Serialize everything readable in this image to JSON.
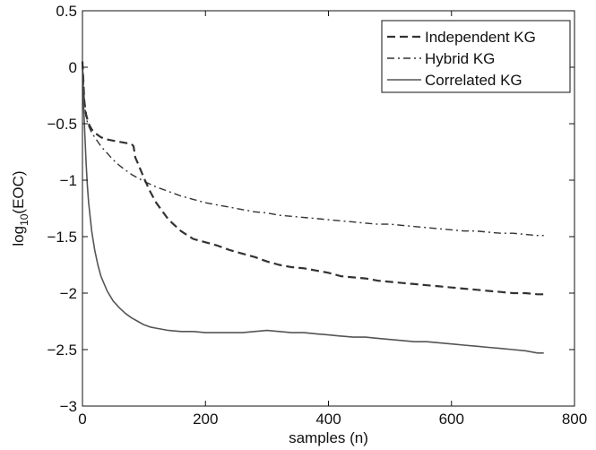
{
  "chart_data": {
    "type": "line",
    "title": "",
    "xlabel": "samples (n)",
    "ylabel_base": "log",
    "ylabel_sub": "10",
    "ylabel_rest": "(EOC)",
    "xlim": [
      0,
      800
    ],
    "ylim": [
      -3,
      0.5
    ],
    "xticks": [
      0,
      200,
      400,
      600,
      800
    ],
    "yticks": [
      0.5,
      0,
      -0.5,
      -1,
      -1.5,
      -2,
      -2.5,
      -3
    ],
    "xtick_labels": [
      "0",
      "200",
      "400",
      "600",
      "800"
    ],
    "ytick_labels": [
      "0.5",
      "0",
      "−0.5",
      "−1",
      "−1.5",
      "−2",
      "−2.5",
      "−3"
    ],
    "grid": false,
    "legend_position": "top-right",
    "series": [
      {
        "name": "Independent KG",
        "style": "dashed",
        "color": "#333333",
        "x": [
          0,
          3,
          6,
          10,
          15,
          20,
          30,
          40,
          50,
          60,
          70,
          80,
          83,
          86,
          90,
          100,
          110,
          120,
          140,
          160,
          180,
          200,
          220,
          240,
          260,
          280,
          300,
          320,
          340,
          360,
          380,
          400,
          420,
          440,
          460,
          480,
          500,
          520,
          540,
          560,
          580,
          600,
          620,
          640,
          660,
          680,
          700,
          720,
          740,
          750
        ],
        "y": [
          0.05,
          -0.3,
          -0.42,
          -0.5,
          -0.55,
          -0.58,
          -0.62,
          -0.64,
          -0.65,
          -0.66,
          -0.67,
          -0.68,
          -0.7,
          -0.8,
          -0.85,
          -0.98,
          -1.1,
          -1.2,
          -1.35,
          -1.45,
          -1.52,
          -1.55,
          -1.58,
          -1.62,
          -1.65,
          -1.68,
          -1.72,
          -1.75,
          -1.77,
          -1.78,
          -1.8,
          -1.82,
          -1.85,
          -1.86,
          -1.87,
          -1.89,
          -1.9,
          -1.91,
          -1.92,
          -1.93,
          -1.94,
          -1.95,
          -1.96,
          -1.97,
          -1.98,
          -1.99,
          -2.0,
          -2.0,
          -2.01,
          -2.01
        ]
      },
      {
        "name": "Hybrid KG",
        "style": "dashdot",
        "color": "#333333",
        "x": [
          0,
          3,
          6,
          10,
          15,
          20,
          30,
          40,
          50,
          60,
          70,
          80,
          90,
          100,
          120,
          140,
          160,
          180,
          200,
          220,
          240,
          260,
          280,
          300,
          320,
          340,
          360,
          380,
          400,
          420,
          440,
          460,
          480,
          500,
          520,
          540,
          560,
          580,
          600,
          620,
          640,
          660,
          680,
          700,
          720,
          740,
          750
        ],
        "y": [
          0.05,
          -0.3,
          -0.45,
          -0.52,
          -0.58,
          -0.62,
          -0.7,
          -0.76,
          -0.82,
          -0.87,
          -0.91,
          -0.95,
          -0.98,
          -1.01,
          -1.06,
          -1.1,
          -1.14,
          -1.17,
          -1.2,
          -1.22,
          -1.24,
          -1.26,
          -1.28,
          -1.29,
          -1.31,
          -1.32,
          -1.33,
          -1.34,
          -1.35,
          -1.36,
          -1.37,
          -1.38,
          -1.39,
          -1.39,
          -1.4,
          -1.41,
          -1.42,
          -1.43,
          -1.44,
          -1.45,
          -1.45,
          -1.46,
          -1.47,
          -1.47,
          -1.48,
          -1.49,
          -1.49
        ]
      },
      {
        "name": "Correlated KG",
        "style": "solid",
        "color": "#555555",
        "x": [
          0,
          2,
          4,
          6,
          8,
          10,
          15,
          20,
          25,
          30,
          40,
          50,
          60,
          70,
          80,
          90,
          100,
          110,
          120,
          140,
          160,
          180,
          200,
          220,
          240,
          260,
          280,
          300,
          320,
          340,
          360,
          380,
          400,
          420,
          440,
          460,
          480,
          500,
          520,
          540,
          560,
          580,
          600,
          620,
          640,
          660,
          680,
          700,
          720,
          740,
          750
        ],
        "y": [
          0.05,
          -0.35,
          -0.6,
          -0.85,
          -1.05,
          -1.2,
          -1.45,
          -1.62,
          -1.75,
          -1.85,
          -1.98,
          -2.07,
          -2.13,
          -2.18,
          -2.22,
          -2.25,
          -2.28,
          -2.3,
          -2.31,
          -2.33,
          -2.34,
          -2.34,
          -2.35,
          -2.35,
          -2.35,
          -2.35,
          -2.34,
          -2.33,
          -2.34,
          -2.35,
          -2.35,
          -2.36,
          -2.37,
          -2.38,
          -2.39,
          -2.39,
          -2.4,
          -2.41,
          -2.42,
          -2.43,
          -2.43,
          -2.44,
          -2.45,
          -2.46,
          -2.47,
          -2.48,
          -2.49,
          -2.5,
          -2.51,
          -2.53,
          -2.53
        ]
      }
    ]
  }
}
